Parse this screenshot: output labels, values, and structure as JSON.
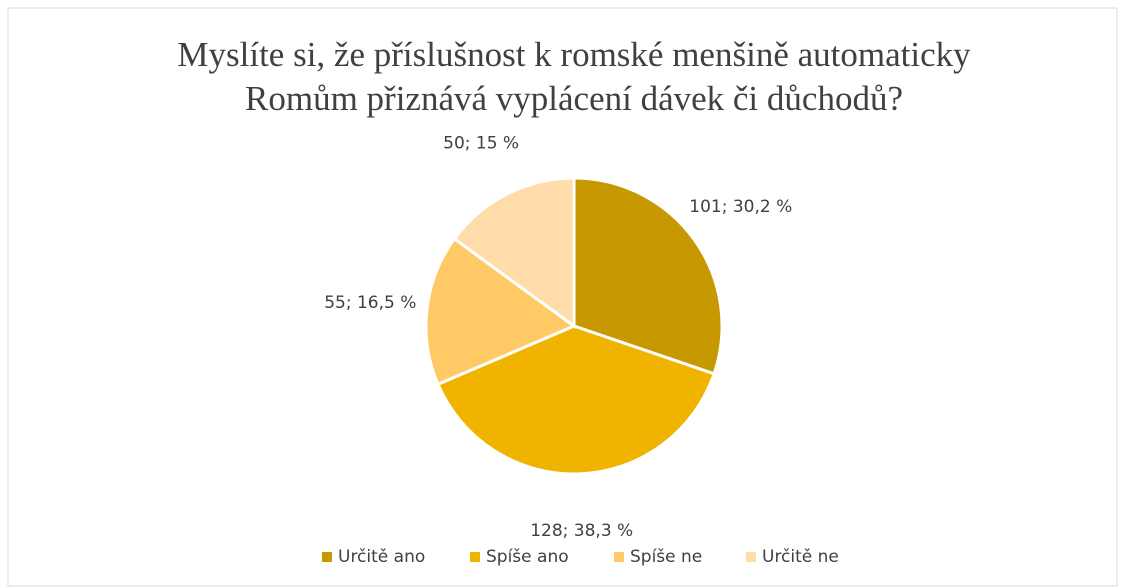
{
  "chart_data": {
    "type": "pie",
    "title": [
      "Myslíte si, že příslušnost k romské menšině automaticky",
      "Romům přiznává vyplácení dávek či důchodů?"
    ],
    "categories": [
      "Určitě ano",
      "Spíše ano",
      "Spíše ne",
      "Určitě ne"
    ],
    "values": [
      101,
      128,
      55,
      50
    ],
    "value_labels": [
      "101; 30,2 %",
      "128; 38,3 %",
      "55; 16,5 %",
      "50; 15 %"
    ],
    "colors": [
      "#c89800",
      "#f0b400",
      "#ffc966",
      "#ffdcaa"
    ],
    "legend": "bottom"
  }
}
